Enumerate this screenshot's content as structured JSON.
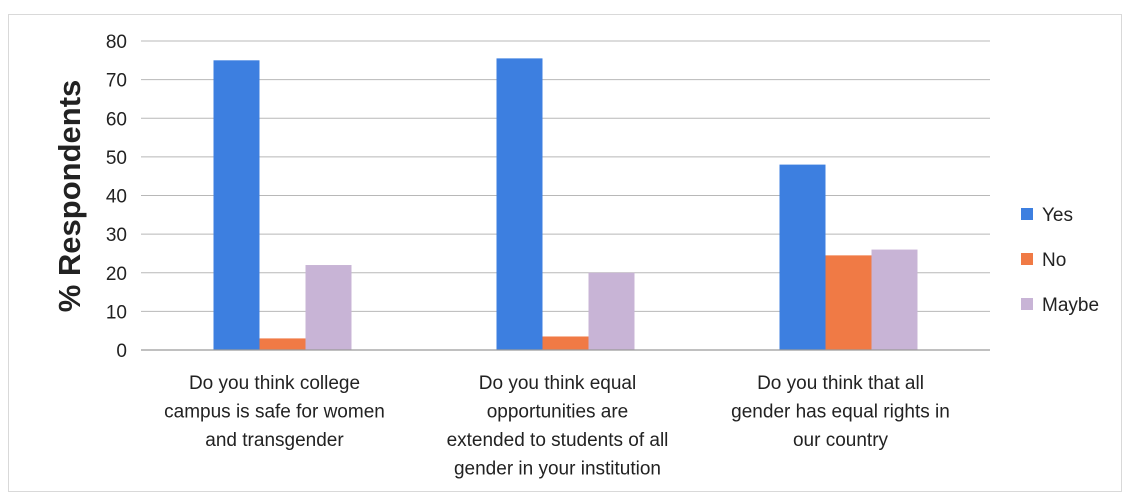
{
  "chart_data": {
    "type": "bar",
    "title": "",
    "xlabel": "",
    "ylabel": "% Respondents",
    "ylim": [
      0,
      80
    ],
    "yticks": [
      0,
      10,
      20,
      30,
      40,
      50,
      60,
      70,
      80
    ],
    "grid": true,
    "legend_position": "right",
    "categories": [
      [
        "Do you think college",
        "campus is safe for women",
        "and transgender"
      ],
      [
        "Do you think equal",
        "opportunities are",
        "extended to students of all",
        "gender in your institution"
      ],
      [
        "Do you think that all",
        "gender has equal rights in",
        "our country"
      ]
    ],
    "series": [
      {
        "name": "Yes",
        "color": "#3d7fe0",
        "values": [
          75,
          75.5,
          48
        ]
      },
      {
        "name": "No",
        "color": "#f07a45",
        "values": [
          3,
          3.5,
          24.5
        ]
      },
      {
        "name": "Maybe",
        "color": "#c8b4d6",
        "values": [
          22,
          20,
          26
        ]
      }
    ]
  }
}
